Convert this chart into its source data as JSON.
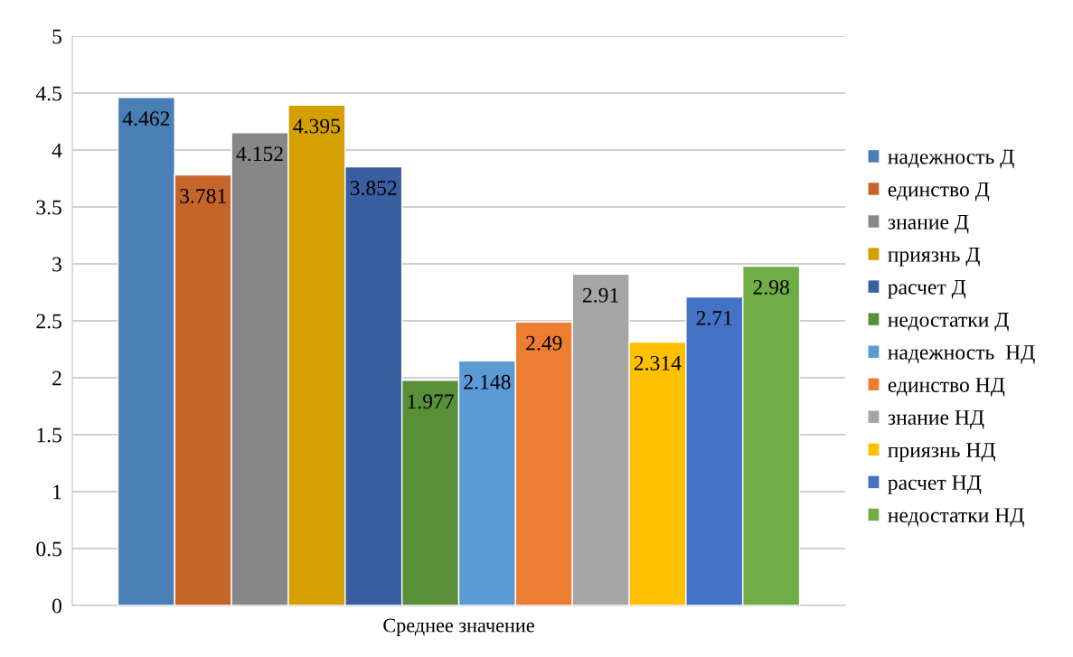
{
  "chart_data": {
    "type": "bar",
    "categories": [
      "Среднее значение"
    ],
    "series": [
      {
        "name": "надежность Д",
        "color": "#4a7fb5",
        "values": [
          4.462
        ]
      },
      {
        "name": "единство Д",
        "color": "#c5652a",
        "values": [
          3.781
        ]
      },
      {
        "name": "знание Д",
        "color": "#878787",
        "values": [
          4.152
        ]
      },
      {
        "name": "приязнь Д",
        "color": "#d4a000",
        "values": [
          4.395
        ]
      },
      {
        "name": "расчет Д",
        "color": "#3a5fa0",
        "values": [
          3.852
        ]
      },
      {
        "name": "недостатки Д",
        "color": "#5a8f3a",
        "values": [
          1.977
        ]
      },
      {
        "name": "надежность  НД",
        "color": "#5b9bd5",
        "values": [
          2.148
        ]
      },
      {
        "name": "единство НД",
        "color": "#ed7d31",
        "values": [
          2.49
        ]
      },
      {
        "name": "знание НД",
        "color": "#a5a5a5",
        "values": [
          2.91
        ]
      },
      {
        "name": "приязнь НД",
        "color": "#ffc000",
        "values": [
          2.314
        ]
      },
      {
        "name": "расчет НД",
        "color": "#4472c4",
        "values": [
          2.71
        ]
      },
      {
        "name": "недостатки НД",
        "color": "#70ad47",
        "values": [
          2.98
        ]
      }
    ],
    "ylim": [
      0,
      5
    ],
    "yticks": [
      0,
      0.5,
      1,
      1.5,
      2,
      2.5,
      3,
      3.5,
      4,
      4.5,
      5
    ],
    "grid": "y",
    "legend": "right",
    "data_labels": true
  }
}
